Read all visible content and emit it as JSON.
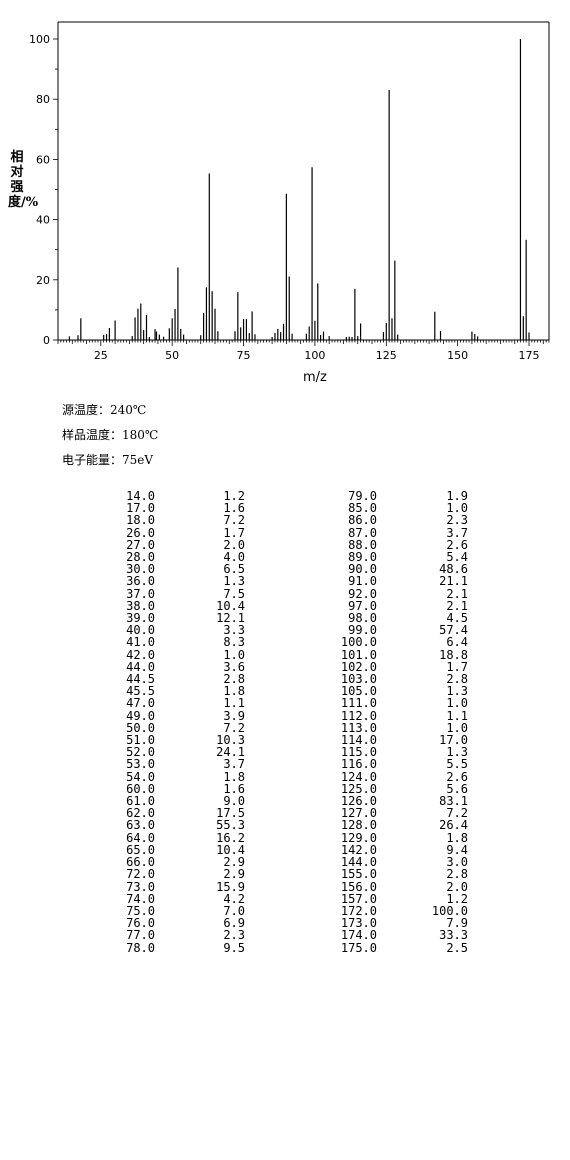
{
  "chart_data": {
    "type": "bar",
    "xlabel": "m/z",
    "ylabel": "相对强度/%",
    "xlim": [
      10,
      182
    ],
    "ylim": [
      0,
      100
    ],
    "xticks": [
      25,
      50,
      75,
      100,
      125,
      150,
      175
    ],
    "yticks": [
      0,
      20,
      40,
      60,
      80,
      100
    ],
    "grid": false,
    "peaks": [
      {
        "mz": 14.0,
        "intensity": 1.2
      },
      {
        "mz": 17.0,
        "intensity": 1.6
      },
      {
        "mz": 18.0,
        "intensity": 7.2
      },
      {
        "mz": 26.0,
        "intensity": 1.7
      },
      {
        "mz": 27.0,
        "intensity": 2.0
      },
      {
        "mz": 28.0,
        "intensity": 4.0
      },
      {
        "mz": 30.0,
        "intensity": 6.5
      },
      {
        "mz": 36.0,
        "intensity": 1.3
      },
      {
        "mz": 37.0,
        "intensity": 7.5
      },
      {
        "mz": 38.0,
        "intensity": 10.4
      },
      {
        "mz": 39.0,
        "intensity": 12.1
      },
      {
        "mz": 40.0,
        "intensity": 3.3
      },
      {
        "mz": 41.0,
        "intensity": 8.3
      },
      {
        "mz": 42.0,
        "intensity": 1.0
      },
      {
        "mz": 44.0,
        "intensity": 3.6
      },
      {
        "mz": 44.5,
        "intensity": 2.8
      },
      {
        "mz": 45.5,
        "intensity": 1.8
      },
      {
        "mz": 47.0,
        "intensity": 1.1
      },
      {
        "mz": 49.0,
        "intensity": 3.9
      },
      {
        "mz": 50.0,
        "intensity": 7.2
      },
      {
        "mz": 51.0,
        "intensity": 10.3
      },
      {
        "mz": 52.0,
        "intensity": 24.1
      },
      {
        "mz": 53.0,
        "intensity": 3.7
      },
      {
        "mz": 54.0,
        "intensity": 1.8
      },
      {
        "mz": 60.0,
        "intensity": 1.6
      },
      {
        "mz": 61.0,
        "intensity": 9.0
      },
      {
        "mz": 62.0,
        "intensity": 17.5
      },
      {
        "mz": 63.0,
        "intensity": 55.3
      },
      {
        "mz": 64.0,
        "intensity": 16.2
      },
      {
        "mz": 65.0,
        "intensity": 10.4
      },
      {
        "mz": 66.0,
        "intensity": 2.9
      },
      {
        "mz": 72.0,
        "intensity": 2.9
      },
      {
        "mz": 73.0,
        "intensity": 15.9
      },
      {
        "mz": 74.0,
        "intensity": 4.2
      },
      {
        "mz": 75.0,
        "intensity": 7.0
      },
      {
        "mz": 76.0,
        "intensity": 6.9
      },
      {
        "mz": 77.0,
        "intensity": 2.3
      },
      {
        "mz": 78.0,
        "intensity": 9.5
      },
      {
        "mz": 79.0,
        "intensity": 1.9
      },
      {
        "mz": 85.0,
        "intensity": 1.0
      },
      {
        "mz": 86.0,
        "intensity": 2.3
      },
      {
        "mz": 87.0,
        "intensity": 3.7
      },
      {
        "mz": 88.0,
        "intensity": 2.6
      },
      {
        "mz": 89.0,
        "intensity": 5.4
      },
      {
        "mz": 90.0,
        "intensity": 48.6
      },
      {
        "mz": 91.0,
        "intensity": 21.1
      },
      {
        "mz": 92.0,
        "intensity": 2.1
      },
      {
        "mz": 97.0,
        "intensity": 2.1
      },
      {
        "mz": 98.0,
        "intensity": 4.5
      },
      {
        "mz": 99.0,
        "intensity": 57.4
      },
      {
        "mz": 100.0,
        "intensity": 6.4
      },
      {
        "mz": 101.0,
        "intensity": 18.8
      },
      {
        "mz": 102.0,
        "intensity": 1.7
      },
      {
        "mz": 103.0,
        "intensity": 2.8
      },
      {
        "mz": 105.0,
        "intensity": 1.3
      },
      {
        "mz": 111.0,
        "intensity": 1.0
      },
      {
        "mz": 112.0,
        "intensity": 1.1
      },
      {
        "mz": 113.0,
        "intensity": 1.0
      },
      {
        "mz": 114.0,
        "intensity": 17.0
      },
      {
        "mz": 115.0,
        "intensity": 1.3
      },
      {
        "mz": 116.0,
        "intensity": 5.5
      },
      {
        "mz": 124.0,
        "intensity": 2.6
      },
      {
        "mz": 125.0,
        "intensity": 5.6
      },
      {
        "mz": 126.0,
        "intensity": 83.1
      },
      {
        "mz": 127.0,
        "intensity": 7.2
      },
      {
        "mz": 128.0,
        "intensity": 26.4
      },
      {
        "mz": 129.0,
        "intensity": 1.8
      },
      {
        "mz": 142.0,
        "intensity": 9.4
      },
      {
        "mz": 144.0,
        "intensity": 3.0
      },
      {
        "mz": 155.0,
        "intensity": 2.8
      },
      {
        "mz": 156.0,
        "intensity": 2.0
      },
      {
        "mz": 157.0,
        "intensity": 1.2
      },
      {
        "mz": 172.0,
        "intensity": 100.0
      },
      {
        "mz": 173.0,
        "intensity": 7.9
      },
      {
        "mz": 174.0,
        "intensity": 33.3
      },
      {
        "mz": 175.0,
        "intensity": 2.5
      }
    ]
  },
  "conditions": [
    "源温度：240℃",
    "样品温度：180℃",
    "电子能量：75eV"
  ],
  "table": {
    "rows": [
      [
        "14.0",
        "1.2",
        "79.0",
        "1.9"
      ],
      [
        "17.0",
        "1.6",
        "85.0",
        "1.0"
      ],
      [
        "18.0",
        "7.2",
        "86.0",
        "2.3"
      ],
      [
        "26.0",
        "1.7",
        "87.0",
        "3.7"
      ],
      [
        "27.0",
        "2.0",
        "88.0",
        "2.6"
      ],
      [
        "28.0",
        "4.0",
        "89.0",
        "5.4"
      ],
      [
        "30.0",
        "6.5",
        "90.0",
        "48.6"
      ],
      [
        "36.0",
        "1.3",
        "91.0",
        "21.1"
      ],
      [
        "37.0",
        "7.5",
        "92.0",
        "2.1"
      ],
      [
        "38.0",
        "10.4",
        "97.0",
        "2.1"
      ],
      [
        "39.0",
        "12.1",
        "98.0",
        "4.5"
      ],
      [
        "40.0",
        "3.3",
        "99.0",
        "57.4"
      ],
      [
        "41.0",
        "8.3",
        "100.0",
        "6.4"
      ],
      [
        "42.0",
        "1.0",
        "101.0",
        "18.8"
      ],
      [
        "44.0",
        "3.6",
        "102.0",
        "1.7"
      ],
      [
        "44.5",
        "2.8",
        "103.0",
        "2.8"
      ],
      [
        "45.5",
        "1.8",
        "105.0",
        "1.3"
      ],
      [
        "47.0",
        "1.1",
        "111.0",
        "1.0"
      ],
      [
        "49.0",
        "3.9",
        "112.0",
        "1.1"
      ],
      [
        "50.0",
        "7.2",
        "113.0",
        "1.0"
      ],
      [
        "51.0",
        "10.3",
        "114.0",
        "17.0"
      ],
      [
        "52.0",
        "24.1",
        "115.0",
        "1.3"
      ],
      [
        "53.0",
        "3.7",
        "116.0",
        "5.5"
      ],
      [
        "54.0",
        "1.8",
        "124.0",
        "2.6"
      ],
      [
        "60.0",
        "1.6",
        "125.0",
        "5.6"
      ],
      [
        "61.0",
        "9.0",
        "126.0",
        "83.1"
      ],
      [
        "62.0",
        "17.5",
        "127.0",
        "7.2"
      ],
      [
        "63.0",
        "55.3",
        "128.0",
        "26.4"
      ],
      [
        "64.0",
        "16.2",
        "129.0",
        "1.8"
      ],
      [
        "65.0",
        "10.4",
        "142.0",
        "9.4"
      ],
      [
        "66.0",
        "2.9",
        "144.0",
        "3.0"
      ],
      [
        "72.0",
        "2.9",
        "155.0",
        "2.8"
      ],
      [
        "73.0",
        "15.9",
        "156.0",
        "2.0"
      ],
      [
        "74.0",
        "4.2",
        "157.0",
        "1.2"
      ],
      [
        "75.0",
        "7.0",
        "172.0",
        "100.0"
      ],
      [
        "76.0",
        "6.9",
        "173.0",
        "7.9"
      ],
      [
        "77.0",
        "2.3",
        "174.0",
        "33.3"
      ],
      [
        "78.0",
        "9.5",
        "175.0",
        "2.5"
      ]
    ]
  }
}
